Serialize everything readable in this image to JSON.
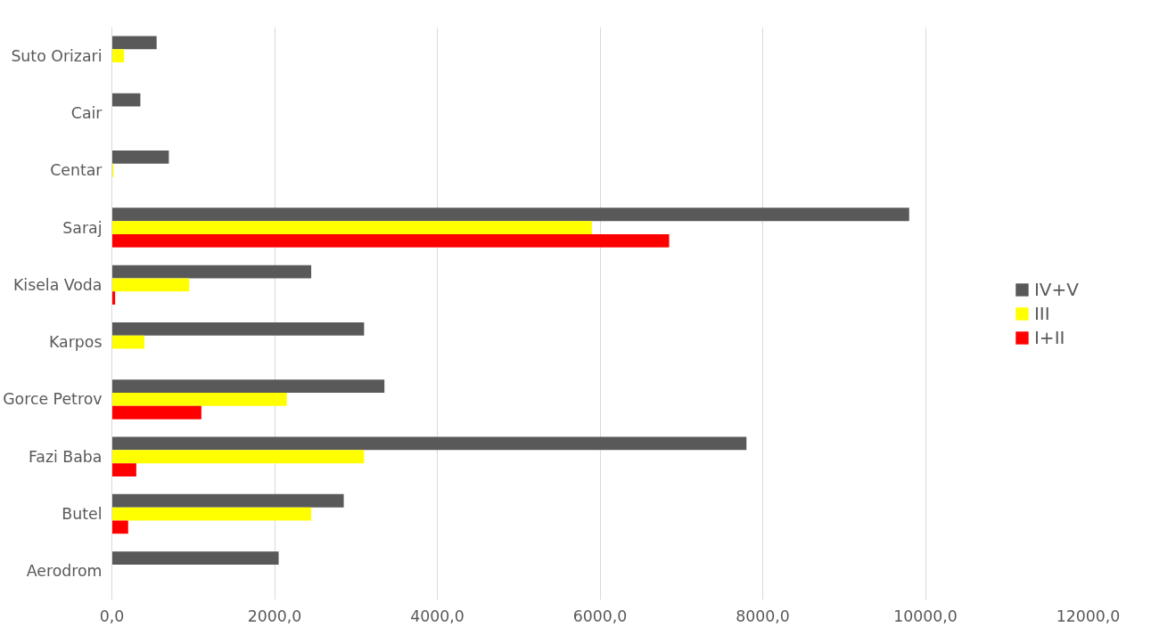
{
  "chart_data": {
    "type": "bar",
    "orientation": "horizontal",
    "categories": [
      "Suto Orizari",
      "Cair",
      "Centar",
      "Saraj",
      "Kisela Voda",
      "Karpos",
      "Gorce Petrov",
      "Fazi Baba",
      "Butel",
      "Aerodrom"
    ],
    "series": [
      {
        "name": "IV+V",
        "color": "#595959",
        "values": [
          550,
          350,
          700,
          9800,
          2450,
          3100,
          3350,
          7800,
          2850,
          2050
        ]
      },
      {
        "name": "III",
        "color": "#ffff00",
        "values": [
          150,
          null,
          20,
          5900,
          950,
          400,
          2150,
          3100,
          2450,
          null
        ]
      },
      {
        "name": "I+II",
        "color": "#ff0000",
        "values": [
          null,
          null,
          null,
          6850,
          40,
          null,
          1100,
          300,
          200,
          null
        ]
      }
    ],
    "xlim": [
      0,
      12000
    ],
    "xticks": [
      {
        "value": 0,
        "label": "0,0"
      },
      {
        "value": 2000,
        "label": "2000,0"
      },
      {
        "value": 4000,
        "label": "4000,0"
      },
      {
        "value": 6000,
        "label": "6000,0"
      },
      {
        "value": 8000,
        "label": "8000,0"
      },
      {
        "value": 10000,
        "label": "10000,0"
      },
      {
        "value": 12000,
        "label": "12000,0"
      }
    ],
    "grid": "x",
    "legend": "right"
  }
}
